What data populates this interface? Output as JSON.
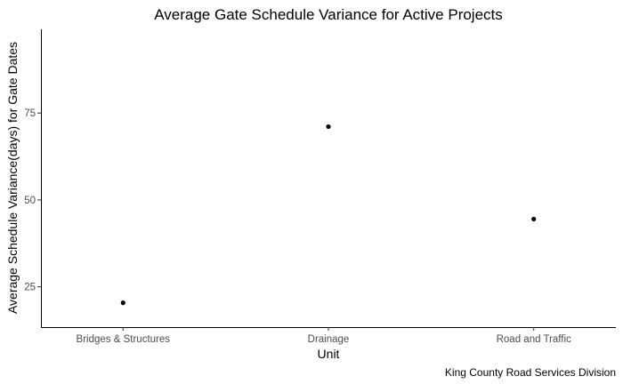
{
  "chart_data": {
    "type": "scatter",
    "title": "Average Gate Schedule Variance for Active Projects",
    "xlabel": "Unit",
    "ylabel": "Average Schedule Variance(days) for Gate Dates",
    "caption": "King County Road Services Division",
    "categories": [
      "Bridges & Structures",
      "Drainage",
      "Road and Traffic"
    ],
    "values": [
      20.4,
      71.1,
      44.5
    ],
    "ylim": [
      13.4,
      99.1
    ],
    "yticks": [
      25,
      50,
      75
    ],
    "grid": false,
    "point_color": "#000000"
  }
}
